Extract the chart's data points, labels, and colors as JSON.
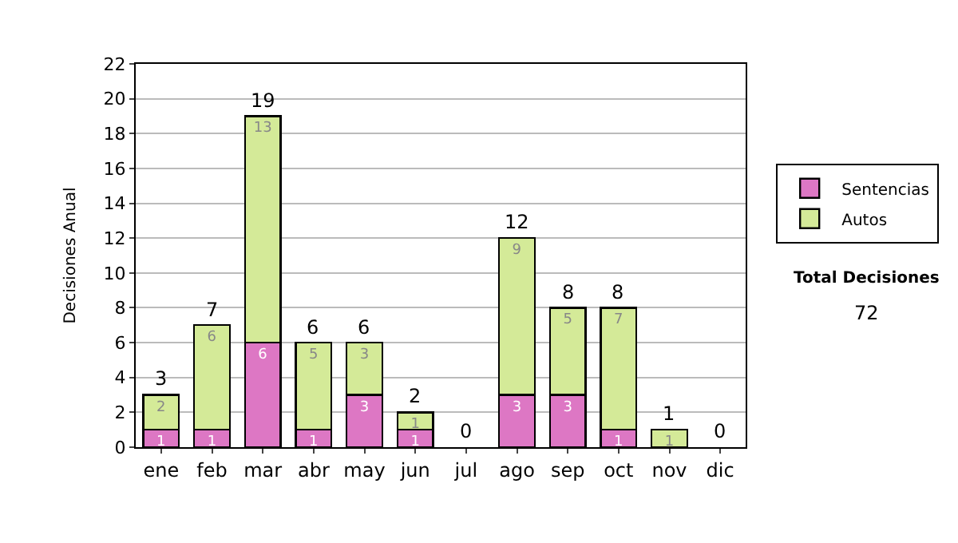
{
  "chart_data": {
    "type": "bar",
    "stacked": true,
    "ylabel": "Decisiones Anual",
    "categories": [
      "ene",
      "feb",
      "mar",
      "abr",
      "may",
      "jun",
      "jul",
      "ago",
      "sep",
      "oct",
      "nov",
      "dic"
    ],
    "series": [
      {
        "name": "Sentencias",
        "color": "#dd77c4",
        "values": [
          1,
          1,
          6,
          1,
          3,
          1,
          0,
          3,
          3,
          1,
          0,
          0
        ],
        "value_labels": [
          "1",
          "1",
          "6",
          "1",
          "3",
          "1",
          null,
          "3",
          "3",
          "1",
          null,
          null
        ]
      },
      {
        "name": "Autos",
        "color": "#d4ea98",
        "values": [
          2,
          6,
          13,
          5,
          3,
          1,
          0,
          9,
          5,
          7,
          1,
          0
        ],
        "value_labels": [
          "2",
          "6",
          "13",
          "5",
          "3",
          "1",
          null,
          "9",
          "5",
          "7",
          "1",
          null
        ]
      }
    ],
    "totals": [
      "3",
      "7",
      "19",
      "6",
      "6",
      "2",
      "0",
      "12",
      "8",
      "8",
      "1",
      "0"
    ],
    "ylim": [
      0,
      22
    ],
    "yticks": [
      0,
      2,
      4,
      6,
      8,
      10,
      12,
      14,
      16,
      18,
      20,
      22
    ],
    "grid": "y",
    "legend": "right",
    "annotations": [
      "Total Decisiones",
      "72"
    ]
  }
}
